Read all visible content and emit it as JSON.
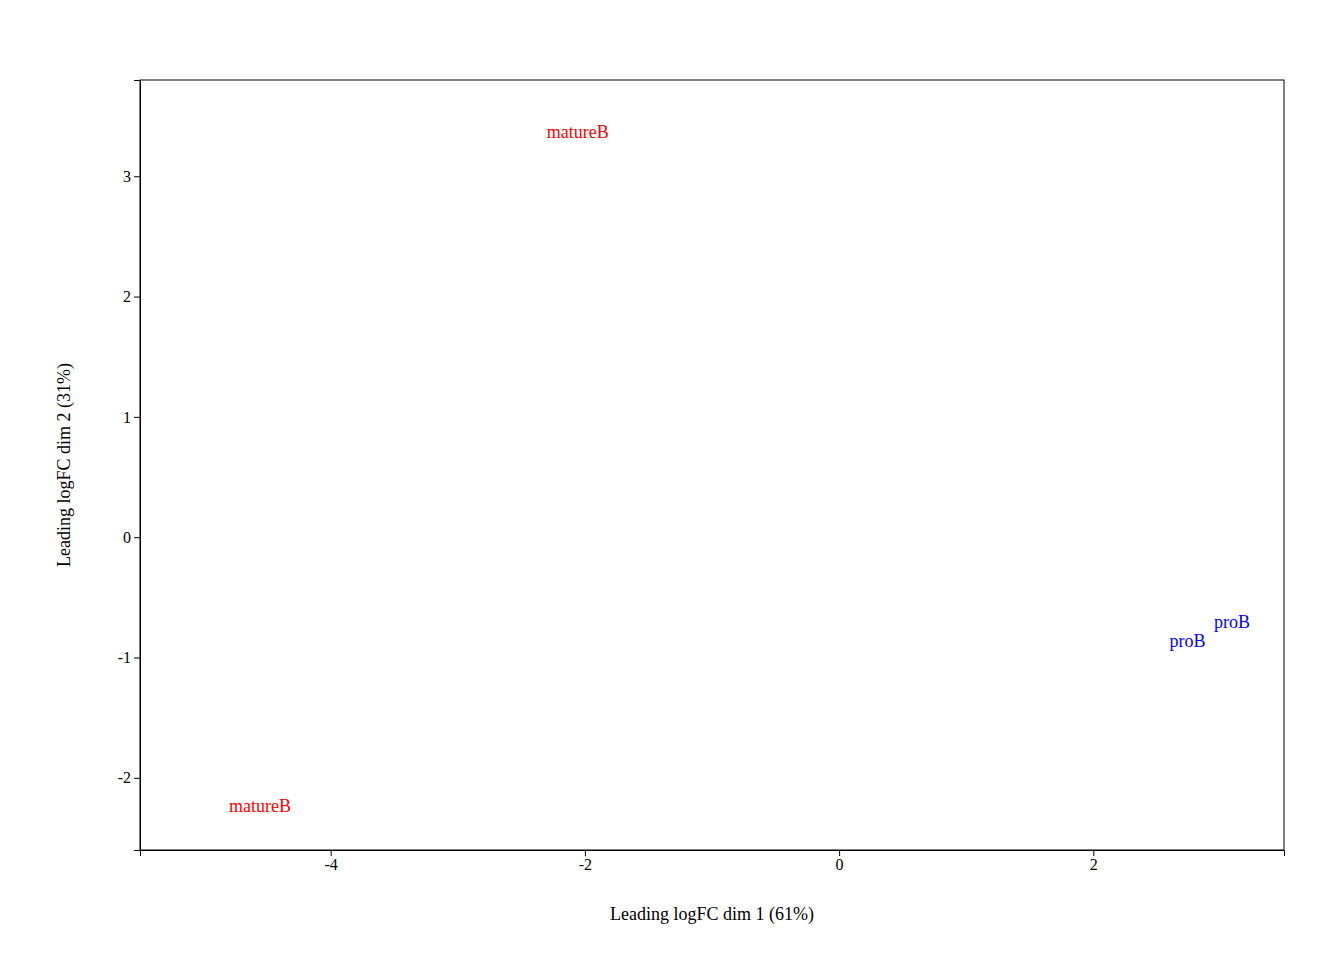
{
  "chart_data": {
    "type": "scatter",
    "marker": "text",
    "x": [
      -4.8,
      -2.3,
      2.6,
      2.95
    ],
    "values": [
      -2.25,
      3.35,
      -0.88,
      -0.72
    ],
    "labels": [
      "matureB",
      "matureB",
      "proB",
      "proB"
    ],
    "colors": [
      "#ff0000",
      "#ff0000",
      "#0000ff",
      "#0000ff"
    ],
    "xlabel": "Leading logFC dim 1 (61%)",
    "ylabel": "Leading logFC dim 2 (31%)",
    "xlim": [
      -5.5,
      3.5
    ],
    "ylim": [
      -2.6,
      3.8
    ],
    "xticks": [
      -4,
      -2,
      0,
      2
    ],
    "yticks": [
      -2,
      -1,
      0,
      1,
      2,
      3
    ],
    "grid": false
  }
}
